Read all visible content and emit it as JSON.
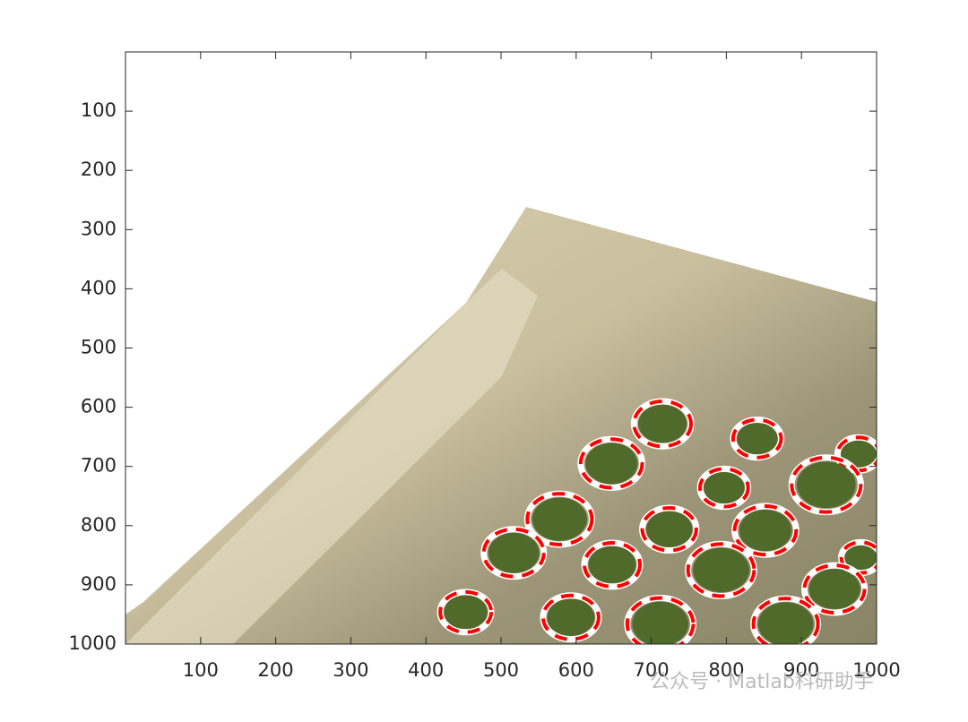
{
  "chart_data": {
    "type": "circles",
    "x": [
      715,
      841,
      976,
      647,
      797,
      933,
      578,
      724,
      852,
      517,
      648,
      793,
      979,
      944,
      453,
      593,
      712,
      879
    ],
    "y": [
      628,
      653,
      679,
      695,
      736,
      731,
      789,
      806,
      808,
      846,
      866,
      875,
      854,
      907,
      946,
      955,
      966,
      966
    ],
    "radii": [
      38,
      32,
      28,
      41,
      32,
      46,
      43,
      36,
      41,
      40,
      37,
      44,
      26,
      40,
      34,
      37,
      44,
      43
    ],
    "xlim": [
      0,
      1000
    ],
    "ylim": [
      0,
      1000
    ],
    "y_reversed": true,
    "xticks": [
      100,
      200,
      300,
      400,
      500,
      600,
      700,
      800,
      900,
      1000
    ],
    "yticks": [
      100,
      200,
      300,
      400,
      500,
      600,
      700,
      800,
      900,
      1000
    ],
    "circle_color": "#ff0000",
    "watermark": "公众号 · Matlab科研助手"
  }
}
